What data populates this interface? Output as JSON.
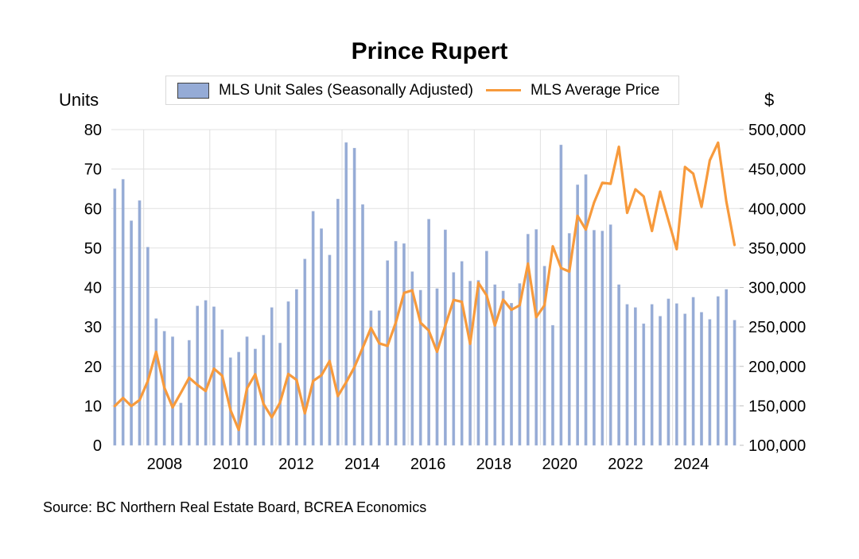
{
  "chart_data": {
    "type": "bar+line",
    "title": "Prince Rupert",
    "source": "Source:  BC Northern Real Estate Board, BCREA Economics",
    "left_axis": {
      "label": "Units",
      "ylim": [
        0,
        80
      ],
      "ticks": [
        "0",
        "10",
        "20",
        "30",
        "40",
        "50",
        "60",
        "70",
        "80"
      ],
      "tick_values": [
        0,
        10,
        20,
        30,
        40,
        50,
        60,
        70,
        80
      ]
    },
    "right_axis": {
      "label": "$",
      "ylim": [
        100000,
        500000
      ],
      "ticks": [
        "100,000",
        "150,000",
        "200,000",
        "250,000",
        "300,000",
        "350,000",
        "400,000",
        "450,000",
        "500,000"
      ],
      "tick_values": [
        100000,
        150000,
        200000,
        250000,
        300000,
        350000,
        400000,
        450000,
        500000
      ]
    },
    "x_axis": {
      "frequency": "quarterly",
      "start": "2006 Q3",
      "end": "2025 Q2",
      "tick_labels": [
        "2008",
        "2010",
        "2012",
        "2014",
        "2016",
        "2018",
        "2020",
        "2022",
        "2024"
      ],
      "grid": true
    },
    "legend": {
      "position": "top",
      "entries": [
        "MLS Unit Sales (Seasonally Adjusted)",
        "MLS Average Price"
      ]
    },
    "series": [
      {
        "name": "MLS Unit Sales (Seasonally Adjusted)",
        "type": "bar",
        "axis": "left",
        "color": "#95abd6",
        "values": [
          65.0,
          67.4,
          56.9,
          62.0,
          50.2,
          32.1,
          28.9,
          27.5,
          10.7,
          26.6,
          35.3,
          36.7,
          35.1,
          29.3,
          22.2,
          23.6,
          27.5,
          24.4,
          27.9,
          34.9,
          25.9,
          36.4,
          39.5,
          47.2,
          59.3,
          54.9,
          48.2,
          62.4,
          76.7,
          75.3,
          61.0,
          34.1,
          34.1,
          46.8,
          51.7,
          51.1,
          44.0,
          39.3,
          57.3,
          39.7,
          54.6,
          43.8,
          46.6,
          41.6,
          41.8,
          49.2,
          40.7,
          39.1,
          36.0,
          41.0,
          53.5,
          54.7,
          45.4,
          30.4,
          76.1,
          53.7,
          66.0,
          68.6,
          54.5,
          54.3,
          55.9,
          40.7,
          35.7,
          34.9,
          30.8,
          35.7,
          32.7,
          37.1,
          35.9,
          33.3,
          37.5,
          33.7,
          31.9,
          37.7,
          39.5,
          31.7
        ]
      },
      {
        "name": "MLS Average Price",
        "type": "line",
        "axis": "right",
        "color": "#f79a3c",
        "values": [
          149800,
          159900,
          149800,
          157300,
          181500,
          218500,
          173100,
          148100,
          166500,
          185500,
          176500,
          168800,
          197000,
          188200,
          144600,
          119400,
          172000,
          190000,
          152400,
          135500,
          154100,
          190400,
          182800,
          140400,
          181500,
          188800,
          206700,
          162400,
          179800,
          198900,
          223500,
          248700,
          229200,
          225900,
          255400,
          293100,
          296400,
          255400,
          245400,
          218500,
          251700,
          284200,
          281800,
          228600,
          305900,
          289800,
          251700,
          284500,
          271700,
          277400,
          330200,
          262300,
          277400,
          352200,
          324600,
          320200,
          390800,
          373300,
          407600,
          432700,
          431400,
          478200,
          394500,
          424300,
          415300,
          371500,
          421400,
          384800,
          348500,
          452600,
          444200,
          402200,
          461000,
          483500,
          409000,
          353800
        ]
      }
    ]
  }
}
